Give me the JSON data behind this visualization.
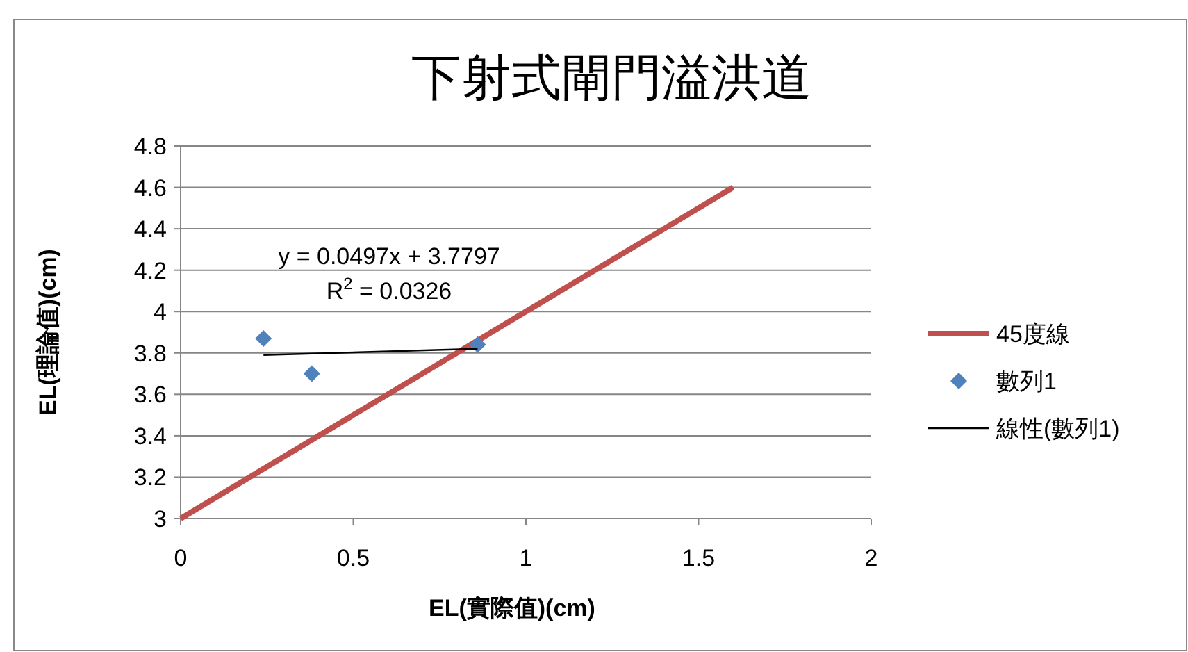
{
  "chart_data": {
    "type": "scatter",
    "title": "下射式閘門溢洪道",
    "xlabel": "EL(實際值)(cm)",
    "ylabel": "EL(理論值)(cm)",
    "xlim": [
      0,
      2
    ],
    "ylim": [
      3,
      4.8
    ],
    "xticks": [
      0,
      0.5,
      1,
      1.5,
      2
    ],
    "yticks": [
      3,
      3.2,
      3.4,
      3.6,
      3.8,
      4,
      4.2,
      4.4,
      4.6,
      4.8
    ],
    "grid": "y",
    "legend": "right",
    "series": [
      {
        "name": "45度線",
        "type": "line",
        "color": "#c0504d",
        "line_style": "solid",
        "marker": "none",
        "x": [
          0,
          1.6
        ],
        "values": [
          3,
          4.6
        ]
      },
      {
        "name": "數列1",
        "color": "#4f81bd",
        "marker": "diamond",
        "x": [
          0.24,
          0.38,
          0.86
        ],
        "values": [
          3.87,
          3.7,
          3.84
        ]
      },
      {
        "name": "線性(數列1)",
        "type": "line",
        "color": "#000000",
        "line_style": "solid",
        "marker": "none",
        "x": [
          0.24,
          0.86
        ],
        "values": [
          3.79,
          3.82
        ]
      }
    ],
    "annotations": [
      "y = 0.0497x + 3.7797",
      "R$^{2}$ = 0.0326"
    ]
  }
}
